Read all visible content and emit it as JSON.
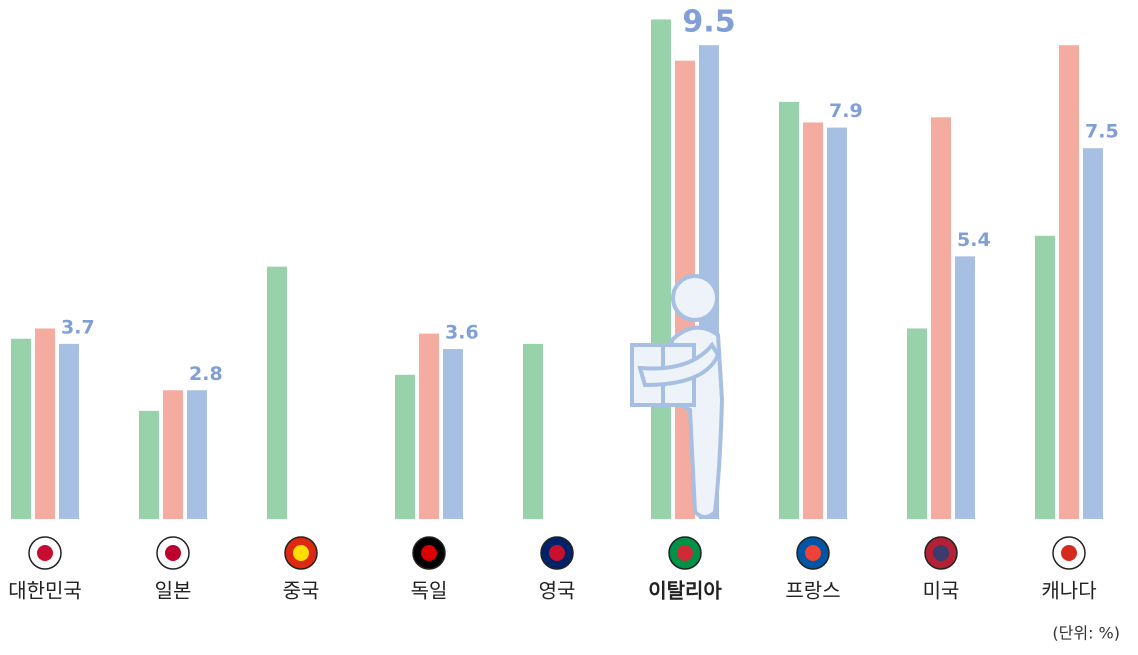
{
  "chart_data": {
    "type": "bar",
    "categories": [
      "대한민국",
      "일본",
      "중국",
      "독일",
      "영국",
      "이탈리아",
      "프랑스",
      "미국",
      "캐나다"
    ],
    "series": [
      {
        "color": "#97d2aa",
        "values": [
          3.8,
          2.4,
          5.2,
          3.1,
          3.7,
          10.0,
          8.4,
          4.0,
          5.8
        ]
      },
      {
        "color": "#f4aca0",
        "values": [
          4.0,
          2.8,
          null,
          3.9,
          null,
          9.2,
          8.0,
          8.1,
          9.5
        ]
      },
      {
        "color": "#a6bfe3",
        "values": [
          3.7,
          2.8,
          null,
          3.6,
          null,
          9.5,
          7.9,
          5.4,
          7.5
        ],
        "show_labels": true,
        "label_color": "#7f9fd6"
      }
    ],
    "ylim": [
      0.3,
      10.3
    ],
    "highlight": 5,
    "unit_note": "(단위: %)"
  }
}
